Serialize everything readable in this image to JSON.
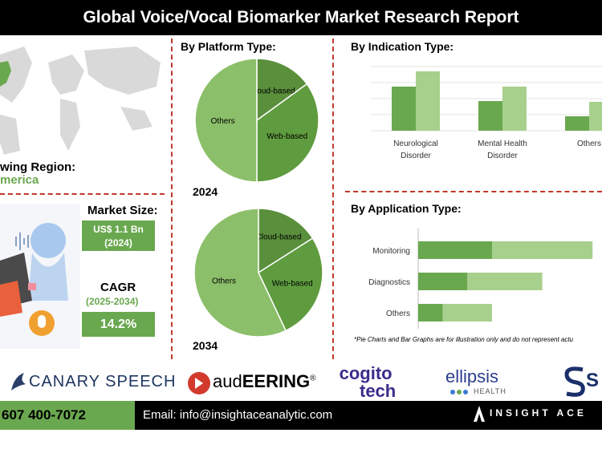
{
  "title": "Global Voice/Vocal Biomarker Market Research Report",
  "region": {
    "label": "wing Region:",
    "value": "merica"
  },
  "market_size": {
    "label": "Market Size:",
    "value": "US$ 1.1 Bn",
    "year": "(2024)"
  },
  "cagr": {
    "label": "CAGR",
    "period": "(2025-2034)",
    "value": "14.2%"
  },
  "platform": {
    "title": "By Platform Type:",
    "year_a": "2024",
    "year_b": "2034"
  },
  "indication": {
    "title": "By  Indication Type:"
  },
  "application": {
    "title": "By Application Type:"
  },
  "disclaimer": "*Pie Charts and Bar Graphs are for illustration only and do not represent actu",
  "logos": {
    "canary": "CANARY SPEECH",
    "audeering_a": "aud",
    "audeering_b": "EERING",
    "reg": "®",
    "cogito_a": "cogito",
    "cogito_b": "tech",
    "ellipsis": "ellipsis",
    "ellipsis_sub": "HEALTH",
    "s_logo": "S"
  },
  "footer": {
    "phone": "607 400-7072",
    "email": "Email: info@insightaceanalytic.com",
    "brand": "INSIGHT ACE A"
  },
  "colors": {
    "dark_green": "#6aa84f",
    "mid_green": "#5f9c3f",
    "light_green": "#a8d08d",
    "pie_dark": "#5a8f3c",
    "pie_light": "#8cbf6a",
    "accent_red": "#c0392b"
  },
  "chart_data": [
    {
      "type": "pie",
      "year": "2024",
      "labels": [
        "Cloud-based",
        "Web-based",
        "Others"
      ],
      "values": [
        15,
        35,
        50
      ]
    },
    {
      "type": "pie",
      "year": "2034",
      "labels": [
        "Cloud-based",
        "Web-based",
        "Others"
      ],
      "values": [
        16,
        27,
        57
      ]
    },
    {
      "type": "bar",
      "categories": [
        "Neurological Disorder",
        "Mental Health Disorder",
        "Others"
      ],
      "category_lines": [
        [
          "Neurological",
          "Disorder"
        ],
        [
          "Mental Health",
          "Disorder"
        ],
        [
          "Others"
        ]
      ],
      "series": [
        {
          "values": [
            55,
            37,
            18
          ]
        },
        {
          "values": [
            74,
            55,
            36
          ]
        }
      ],
      "ylim": [
        0,
        80
      ]
    },
    {
      "type": "bar",
      "orientation": "horizontal",
      "stacked": true,
      "categories": [
        "Monitoring",
        "Diagnostics",
        "Others"
      ],
      "series": [
        {
          "values": [
            72,
            48,
            24
          ]
        },
        {
          "values": [
            98,
            73,
            48
          ]
        }
      ],
      "xlim": [
        0,
        180
      ]
    }
  ]
}
